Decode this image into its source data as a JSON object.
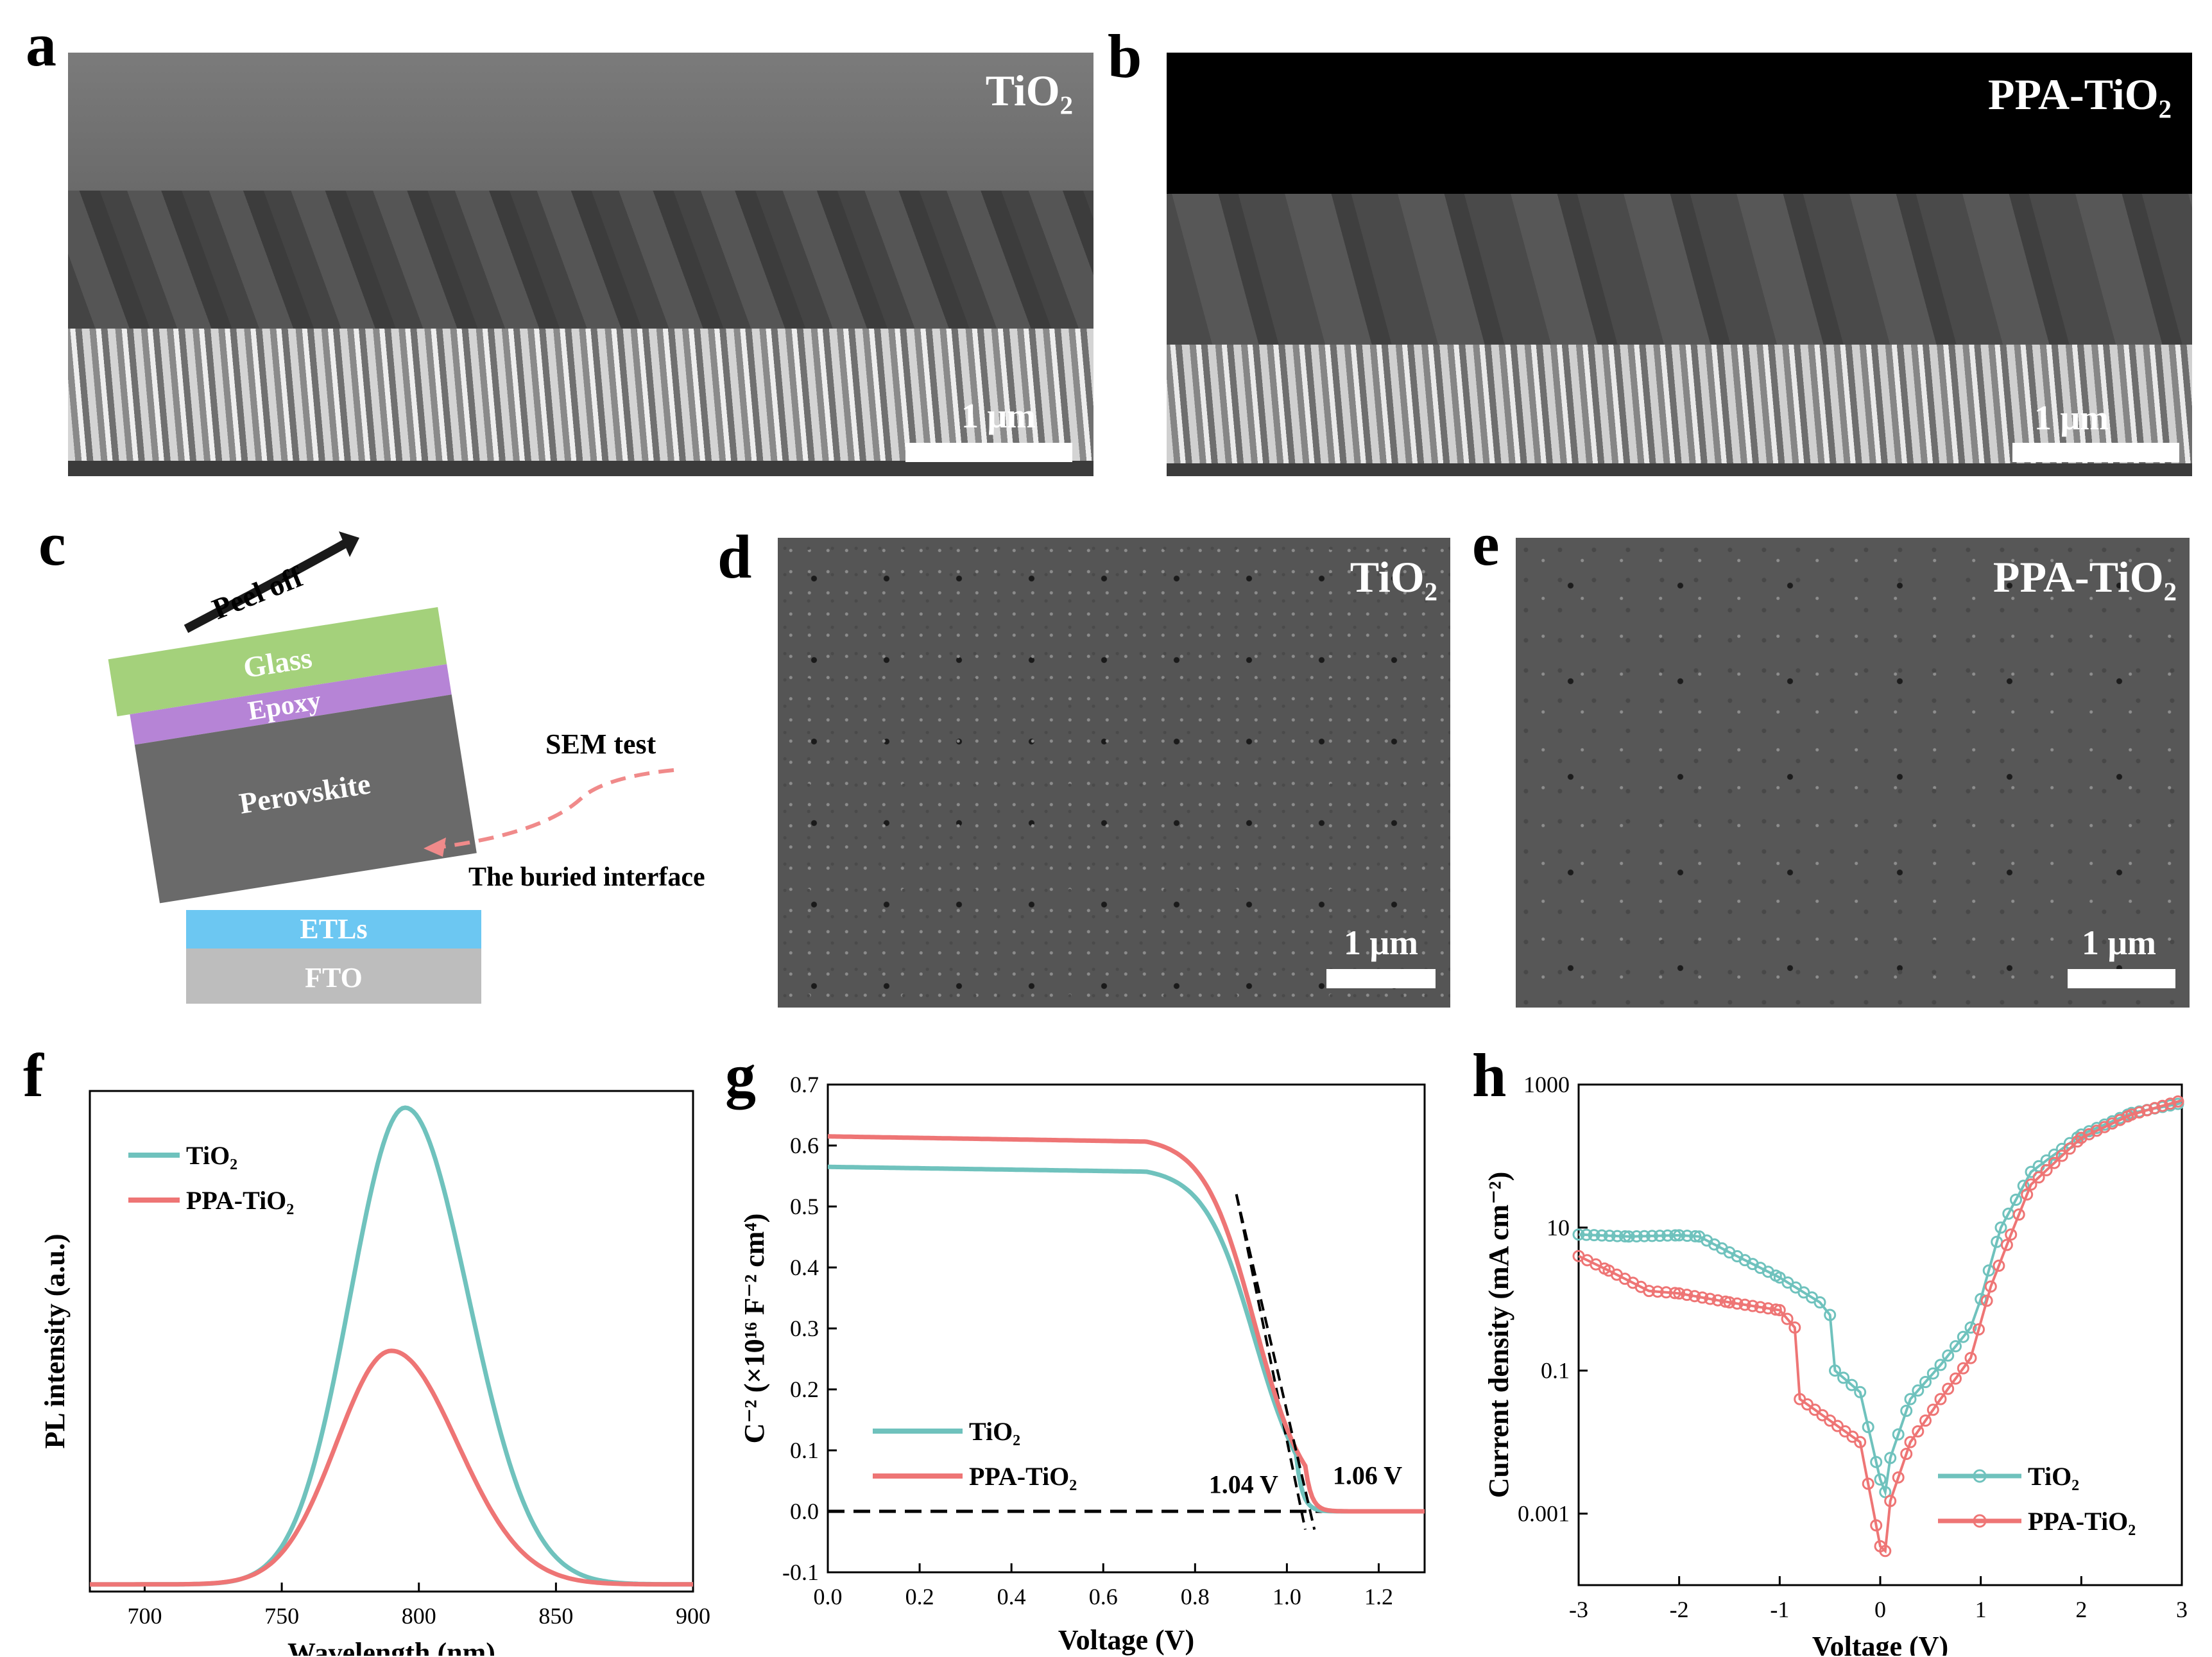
{
  "panels": {
    "a": {
      "letter": "a",
      "label": "TiO₂",
      "scale": "1 μm"
    },
    "b": {
      "letter": "b",
      "label": "PPA-TiO₂",
      "scale": "1 μm"
    },
    "c": {
      "letter": "c",
      "peel": "Peel off",
      "glass": "Glass",
      "epoxy": "Epoxy",
      "perovskite": "Perovskite",
      "etl": "ETLs",
      "fto": "FTO",
      "sem_test": "SEM test",
      "buried": "The buried interface",
      "colors": {
        "glass": "#a4d17b",
        "epoxy": "#b684d6",
        "perovskite": "#6a6a6a",
        "etl": "#6cc7f2",
        "fto": "#bdbdbd",
        "arrow": "#f08a8a"
      }
    },
    "d": {
      "letter": "d",
      "label": "TiO₂",
      "scale": "1 μm"
    },
    "e": {
      "letter": "e",
      "label": "PPA-TiO₂",
      "scale": "1 μm"
    },
    "f": {
      "letter": "f"
    },
    "g": {
      "letter": "g",
      "ann1": "1.04 V",
      "ann2": "1.06 V"
    },
    "h": {
      "letter": "h"
    }
  },
  "chart_data": [
    {
      "id": "f",
      "type": "line",
      "xlabel": "Wavelength (nm)",
      "ylabel": "PL intensity (a.u.)",
      "xlim": [
        680,
        900
      ],
      "ylim": [
        0,
        1.05
      ],
      "xticks": [
        "700",
        "750",
        "800",
        "850",
        "900"
      ],
      "legend_position": "top-left",
      "series": [
        {
          "name": "TiO₂",
          "color": "#6fc2bd",
          "peak": 795,
          "amp": 1.0,
          "sigmaL": 20,
          "sigmaR": 23
        },
        {
          "name": "PPA-TiO₂",
          "color": "#ee7575",
          "peak": 790,
          "amp": 0.49,
          "sigmaL": 20,
          "sigmaR": 24
        }
      ]
    },
    {
      "id": "g",
      "type": "line",
      "xlabel": "Voltage (V)",
      "ylabel": "C⁻² (×10¹⁶ F⁻² cm⁴)",
      "xlim": [
        0,
        1.3
      ],
      "ylim": [
        -0.1,
        0.7
      ],
      "xticks": [
        "0.0",
        "0.2",
        "0.4",
        "0.6",
        "0.8",
        "1.0",
        "1.2"
      ],
      "yticks": [
        "-0.1",
        "0.0",
        "0.1",
        "0.2",
        "0.3",
        "0.4",
        "0.5",
        "0.6",
        "0.7"
      ],
      "legend_position": "bottom-left",
      "series": [
        {
          "name": "TiO₂",
          "color": "#6fc2bd",
          "plateau": 0.565,
          "vbi": 1.04
        },
        {
          "name": "PPA-TiO₂",
          "color": "#ee7575",
          "plateau": 0.615,
          "vbi": 1.06
        }
      ]
    },
    {
      "id": "h",
      "type": "scatter",
      "xlabel": "Voltage (V)",
      "ylabel": "Current density (mA cm⁻²)",
      "xlim": [
        -3,
        3
      ],
      "ylim_log10": [
        -4,
        3
      ],
      "scale": "log",
      "xticks": [
        "-3",
        "-2",
        "-1",
        "0",
        "1",
        "2",
        "3"
      ],
      "yticks": [
        "1000",
        "10",
        "0.1",
        "0.001"
      ],
      "legend_position": "bottom-right",
      "series": [
        {
          "name": "TiO₂",
          "color": "#6fc2bd",
          "points": [
            [
              -3,
              8
            ],
            [
              -2.5,
              7.5
            ],
            [
              -2,
              7.8
            ],
            [
              -1.8,
              7.5
            ],
            [
              -1.5,
              4.5
            ],
            [
              -1,
              2
            ],
            [
              -0.6,
              0.9
            ],
            [
              -0.5,
              0.6
            ],
            [
              -0.45,
              0.1
            ],
            [
              -0.2,
              0.05
            ],
            [
              0,
              0.003
            ],
            [
              0.05,
              0.002
            ],
            [
              0.1,
              0.006
            ],
            [
              0.3,
              0.04
            ],
            [
              0.6,
              0.12
            ],
            [
              0.9,
              0.4
            ],
            [
              1,
              1
            ],
            [
              1.2,
              10
            ],
            [
              1.5,
              60
            ],
            [
              2,
              200
            ],
            [
              2.5,
              400
            ],
            [
              3,
              550
            ]
          ]
        },
        {
          "name": "PPA-TiO₂",
          "color": "#ee7575",
          "points": [
            [
              -3,
              4
            ],
            [
              -2.7,
              2.5
            ],
            [
              -2.3,
              1.3
            ],
            [
              -2,
              1.2
            ],
            [
              -1.5,
              0.9
            ],
            [
              -1,
              0.7
            ],
            [
              -0.85,
              0.4
            ],
            [
              -0.8,
              0.04
            ],
            [
              -0.5,
              0.02
            ],
            [
              -0.2,
              0.01
            ],
            [
              0,
              0.00035
            ],
            [
              0.05,
              0.0003
            ],
            [
              0.1,
              0.0015
            ],
            [
              0.3,
              0.01
            ],
            [
              0.6,
              0.04
            ],
            [
              0.9,
              0.15
            ],
            [
              1.1,
              1.5
            ],
            [
              1.3,
              8
            ],
            [
              1.5,
              40
            ],
            [
              2,
              180
            ],
            [
              2.5,
              380
            ],
            [
              3,
              600
            ]
          ]
        }
      ]
    }
  ]
}
